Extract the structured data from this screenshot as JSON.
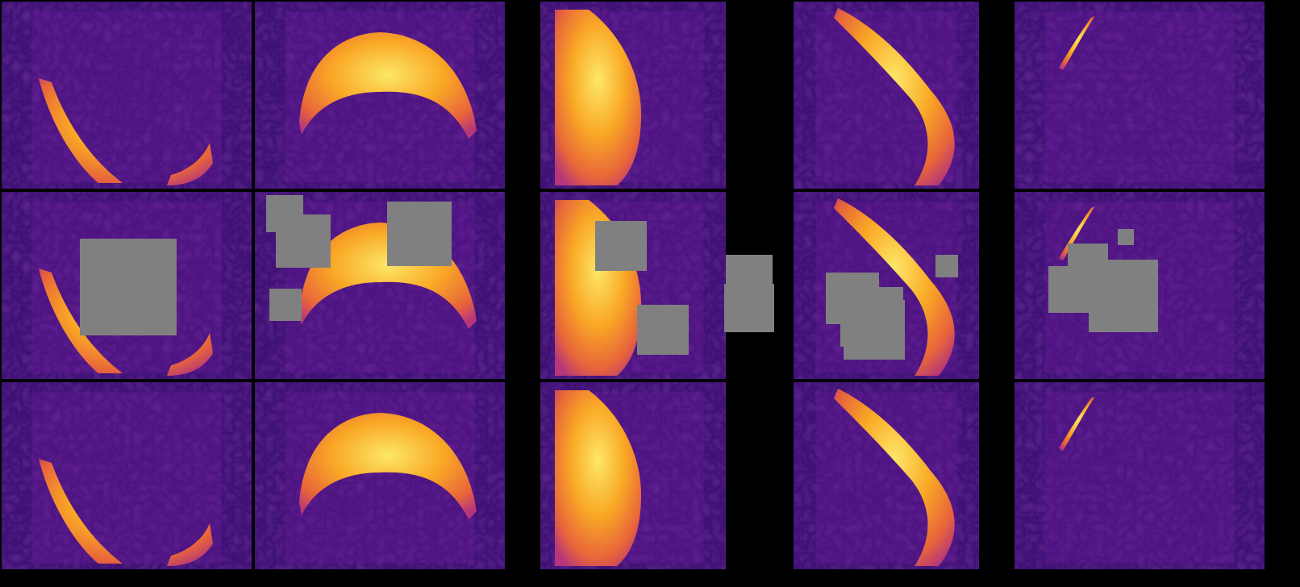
{
  "figure": {
    "rows": [
      "original",
      "masked",
      "reconstructed"
    ],
    "columns": [
      {
        "id": "col-1",
        "fire_shape": "arc-bottom-left"
      },
      {
        "id": "col-2",
        "fire_shape": "crescent-top"
      },
      {
        "id": "col-3",
        "fire_shape": "left-half-dome"
      },
      {
        "id": "col-4",
        "fire_shape": "right-edge-band"
      },
      {
        "id": "col-5",
        "fire_shape": "small-top-left-streak"
      }
    ],
    "colormap": [
      "#1a0a4a",
      "#3c0f73",
      "#6a1b9a",
      "#b5367a",
      "#e8653a",
      "#f9a825",
      "#fde768"
    ],
    "mask_color": "#808080",
    "background_color": "#000000"
  }
}
